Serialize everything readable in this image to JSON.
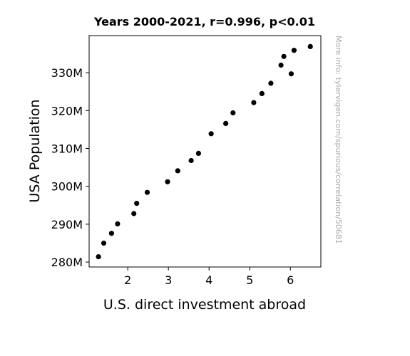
{
  "chart_data": {
    "type": "scatter",
    "title": "Years 2000-2021, r=0.996, p<0.01",
    "xlabel": "U.S. direct investment abroad",
    "ylabel": "USA Population",
    "xlim": [
      1.05,
      6.75
    ],
    "ylim": [
      278.7,
      339.8
    ],
    "xticks": [
      2,
      3,
      4,
      5,
      6
    ],
    "xtick_labels": [
      "2",
      "3",
      "4",
      "5",
      "6"
    ],
    "yticks": [
      280,
      290,
      300,
      310,
      320,
      330
    ],
    "ytick_labels": [
      "280M",
      "290M",
      "300M",
      "310M",
      "320M",
      "330M"
    ],
    "grid": false,
    "marker_color": "#000000",
    "points": [
      {
        "x": 1.28,
        "y": 281.4
      },
      {
        "x": 1.41,
        "y": 285.0
      },
      {
        "x": 1.6,
        "y": 287.6
      },
      {
        "x": 1.75,
        "y": 290.1
      },
      {
        "x": 2.15,
        "y": 292.8
      },
      {
        "x": 2.22,
        "y": 295.5
      },
      {
        "x": 2.48,
        "y": 298.4
      },
      {
        "x": 2.98,
        "y": 301.2
      },
      {
        "x": 3.23,
        "y": 304.1
      },
      {
        "x": 3.56,
        "y": 306.8
      },
      {
        "x": 3.74,
        "y": 308.7
      },
      {
        "x": 4.05,
        "y": 313.9
      },
      {
        "x": 4.41,
        "y": 316.6
      },
      {
        "x": 4.59,
        "y": 319.4
      },
      {
        "x": 5.1,
        "y": 322.1
      },
      {
        "x": 5.3,
        "y": 324.5
      },
      {
        "x": 5.52,
        "y": 327.2
      },
      {
        "x": 5.77,
        "y": 332.0
      },
      {
        "x": 5.84,
        "y": 334.3
      },
      {
        "x": 6.02,
        "y": 329.7
      },
      {
        "x": 6.09,
        "y": 335.9
      },
      {
        "x": 6.49,
        "y": 336.9
      }
    ]
  },
  "watermark": "More info: tylervigen.com/spurious/correlation/50681"
}
